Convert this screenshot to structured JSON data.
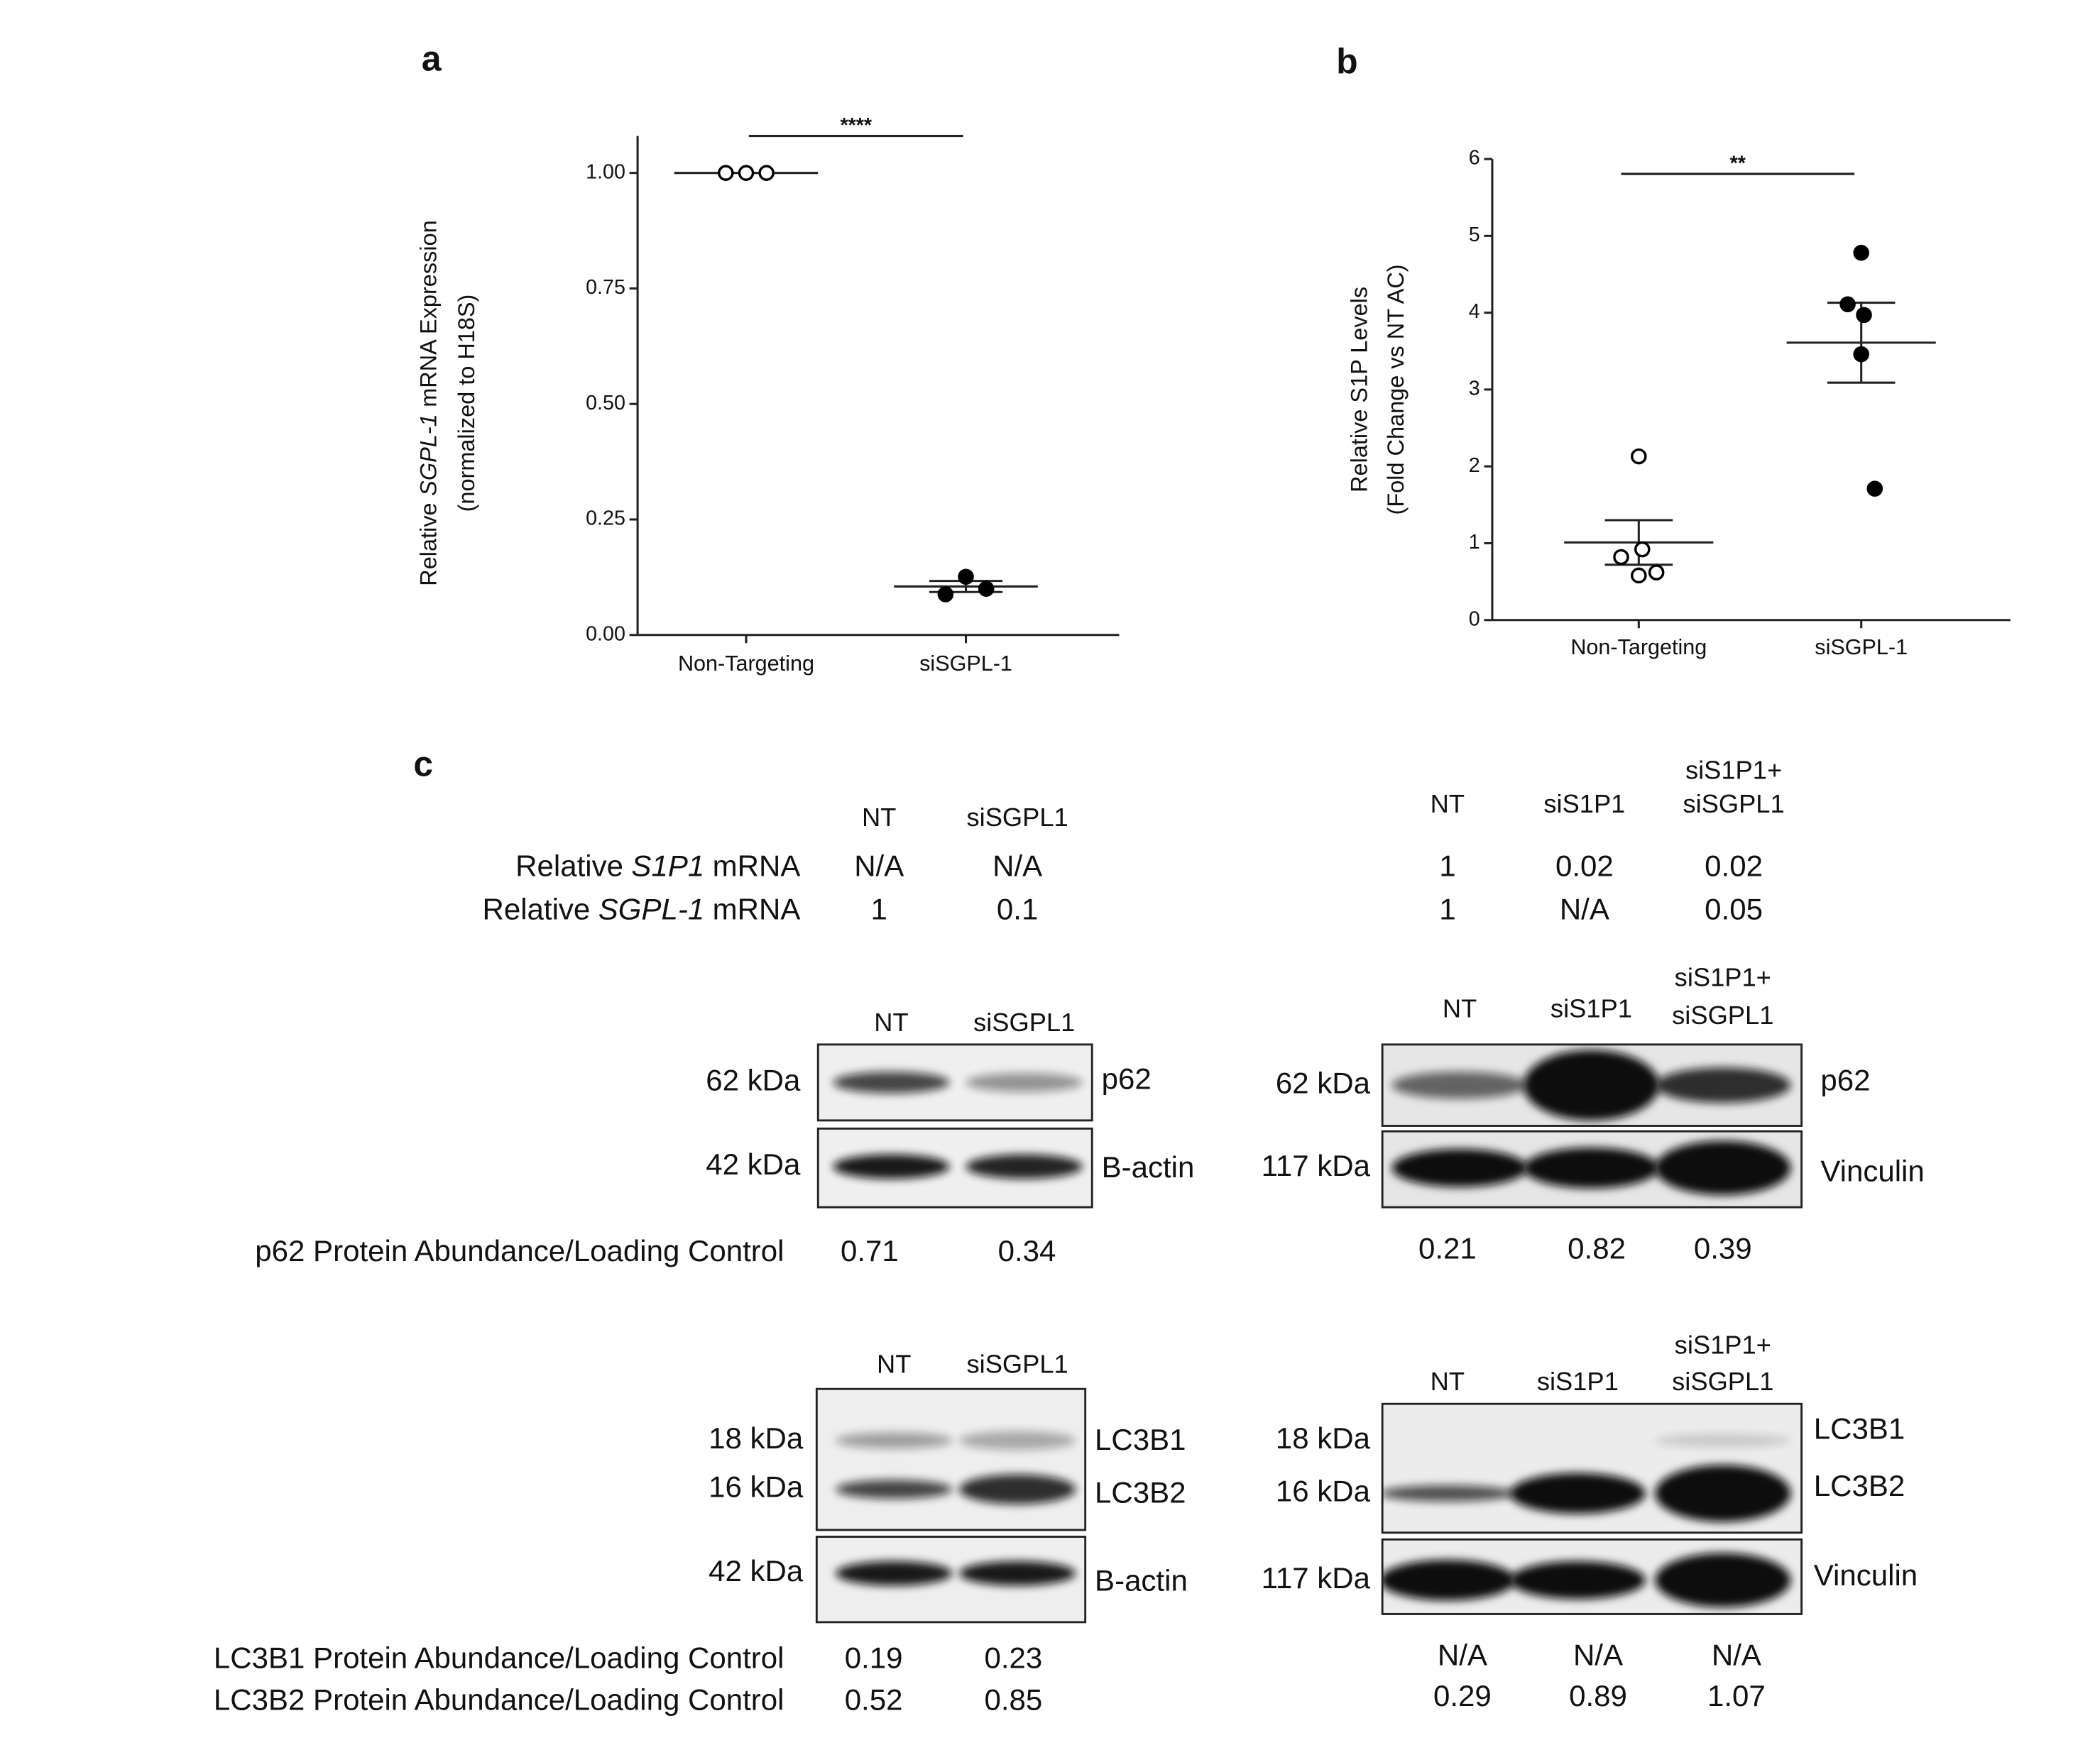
{
  "chart_data": [
    {
      "type": "scatter",
      "panel": "a",
      "ylabel": {
        "line1": [
          "Relative",
          "SGPL-1",
          "mRNA Expression"
        ],
        "line2": "(normalized to H18S)"
      },
      "categories": [
        "Non-Targeting",
        "siSGPL-1"
      ],
      "values": [
        [
          1,
          1,
          1
        ],
        [
          0.088,
          0.126,
          0.1
        ]
      ],
      "means": [
        1,
        0.105
      ],
      "errors": [
        0,
        0.012
      ],
      "filled": [
        false,
        true
      ],
      "color": "#000000",
      "ylim": [
        0,
        1.08
      ],
      "yticks": [
        {
          "value": 0,
          "label": "0.00"
        },
        {
          "value": 0.25,
          "label": "0.25"
        },
        {
          "value": 0.5,
          "label": "0.50"
        },
        {
          "value": 0.75,
          "label": "0.75"
        },
        {
          "value": 1,
          "label": "1.00"
        }
      ],
      "significance": "****"
    },
    {
      "type": "scatter",
      "panel": "b",
      "ylabel": {
        "line1": [
          "Relative S1P Levels"
        ],
        "line2": "(Fold Change vs NT AC)"
      },
      "categories": [
        "Non-Targeting",
        "siSGPL-1"
      ],
      "values": [
        [
          2.13,
          0.82,
          0.92,
          0.58,
          0.62
        ],
        [
          4.78,
          4.11,
          3.97,
          3.46,
          1.71
        ]
      ],
      "means": [
        1.01,
        3.61
      ],
      "errors": [
        0.29,
        0.52
      ],
      "filled": [
        false,
        true
      ],
      "color": "#000000",
      "ylim": [
        0,
        6
      ],
      "yticks": [
        0,
        1,
        2,
        3,
        4,
        5,
        6
      ],
      "significance": "**"
    }
  ],
  "panel_c": {
    "label": "c",
    "mrna": {
      "row_labels": [
        [
          "Relative",
          "S1P1",
          "mRNA"
        ],
        [
          "Relative",
          "SGPL-1",
          "mRNA"
        ]
      ],
      "tables": [
        {
          "columns": [
            "NT",
            "siSGPL1"
          ],
          "values": [
            [
              "N/A",
              "N/A"
            ],
            [
              1,
              0.1
            ]
          ]
        },
        {
          "columns": [
            "NT",
            "siS1P1",
            [
              "siS1P1+",
              "siSGPL1"
            ]
          ],
          "values": [
            [
              1,
              0.02,
              0.02
            ],
            [
              1,
              "N/A",
              0.05
            ]
          ]
        }
      ]
    },
    "blots": [
      {
        "columns": [
          "NT",
          "siSGPL1"
        ],
        "bands": [
          {
            "marker": "62 kDa",
            "protein": "p62"
          },
          {
            "marker": "42 kDa",
            "protein": "B-actin"
          }
        ],
        "quant": [
          {
            "label": "p62 Protein Abundance/Loading Control",
            "values": [
              0.71,
              0.34
            ]
          }
        ]
      },
      {
        "columns": [
          "NT",
          "siS1P1",
          [
            "siS1P1+",
            "siSGPL1"
          ]
        ],
        "bands": [
          {
            "marker": "62 kDa",
            "protein": "p62"
          },
          {
            "marker": "117 kDa",
            "protein": "Vinculin"
          }
        ],
        "quant": [
          {
            "values": [
              0.21,
              0.82,
              0.39
            ]
          }
        ]
      },
      {
        "columns": [
          "NT",
          "siSGPL1"
        ],
        "bands": [
          {
            "marker": "18 kDa",
            "protein": "LC3B1"
          },
          {
            "marker": "16 kDa",
            "protein": "LC3B2"
          },
          {
            "marker": "42 kDa",
            "protein": "B-actin"
          }
        ],
        "quant": [
          {
            "label": "LC3B1 Protein Abundance/Loading Control",
            "values": [
              0.19,
              0.23
            ]
          },
          {
            "label": "LC3B2 Protein Abundance/Loading Control",
            "values": [
              0.52,
              0.85
            ]
          }
        ]
      },
      {
        "columns": [
          "NT",
          "siS1P1",
          [
            "siS1P1+",
            "siSGPL1"
          ]
        ],
        "bands": [
          {
            "marker": "18 kDa",
            "protein": "LC3B1"
          },
          {
            "marker": "16 kDa",
            "protein": "LC3B2"
          },
          {
            "marker": "117 kDa",
            "protein": "Vinculin"
          }
        ],
        "quant": [
          {
            "values": [
              "N/A",
              "N/A",
              "N/A"
            ]
          },
          {
            "values": [
              0.29,
              0.89,
              1.07
            ]
          }
        ]
      }
    ]
  }
}
